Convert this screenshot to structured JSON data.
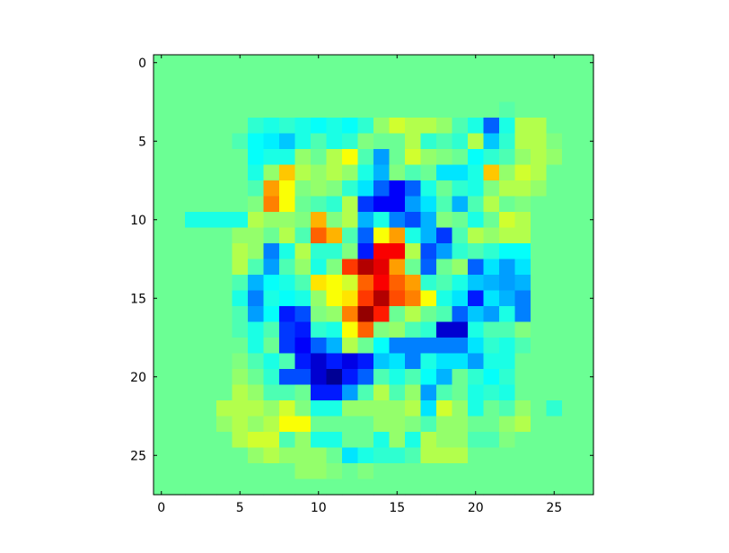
{
  "chart_data": {
    "type": "heatmap",
    "title": "",
    "xlabel": "",
    "ylabel": "",
    "colormap": "jet",
    "vmin": 0.0,
    "vmax": 1.0,
    "xlim": [
      -0.5,
      27.5
    ],
    "ylim": [
      27.5,
      -0.5
    ],
    "grid": false,
    "rows": 28,
    "cols": 28,
    "x_ticks": [
      0,
      5,
      10,
      15,
      20,
      25
    ],
    "y_ticks": [
      0,
      5,
      10,
      15,
      20,
      25
    ],
    "x_tick_labels": [
      "0",
      "5",
      "10",
      "15",
      "20",
      "25"
    ],
    "y_tick_labels": [
      "0",
      "5",
      "10",
      "15",
      "20",
      "25"
    ],
    "background_value": 0.48,
    "values": [
      [
        0.48,
        0.48,
        0.48,
        0.48,
        0.48,
        0.48,
        0.48,
        0.48,
        0.48,
        0.48,
        0.48,
        0.48,
        0.48,
        0.48,
        0.48,
        0.48,
        0.48,
        0.48,
        0.48,
        0.48,
        0.48,
        0.48,
        0.48,
        0.48,
        0.48,
        0.48,
        0.48,
        0.48
      ],
      [
        0.48,
        0.48,
        0.48,
        0.48,
        0.48,
        0.48,
        0.48,
        0.48,
        0.48,
        0.48,
        0.48,
        0.48,
        0.48,
        0.48,
        0.48,
        0.48,
        0.48,
        0.48,
        0.48,
        0.48,
        0.48,
        0.48,
        0.48,
        0.48,
        0.48,
        0.48,
        0.48,
        0.48
      ],
      [
        0.48,
        0.48,
        0.48,
        0.48,
        0.48,
        0.48,
        0.48,
        0.48,
        0.48,
        0.48,
        0.48,
        0.48,
        0.48,
        0.48,
        0.48,
        0.48,
        0.48,
        0.48,
        0.48,
        0.48,
        0.48,
        0.48,
        0.48,
        0.48,
        0.48,
        0.48,
        0.48,
        0.48
      ],
      [
        0.48,
        0.48,
        0.48,
        0.48,
        0.48,
        0.48,
        0.48,
        0.48,
        0.48,
        0.48,
        0.48,
        0.48,
        0.48,
        0.48,
        0.48,
        0.48,
        0.48,
        0.48,
        0.48,
        0.48,
        0.48,
        0.48,
        0.46,
        0.48,
        0.48,
        0.48,
        0.48,
        0.48
      ],
      [
        0.48,
        0.48,
        0.48,
        0.48,
        0.48,
        0.48,
        0.42,
        0.4,
        0.42,
        0.4,
        0.38,
        0.4,
        0.38,
        0.42,
        0.52,
        0.58,
        0.55,
        0.55,
        0.52,
        0.45,
        0.4,
        0.22,
        0.4,
        0.55,
        0.55,
        0.48,
        0.48,
        0.48
      ],
      [
        0.48,
        0.48,
        0.48,
        0.48,
        0.48,
        0.45,
        0.38,
        0.36,
        0.32,
        0.4,
        0.45,
        0.4,
        0.42,
        0.5,
        0.48,
        0.48,
        0.55,
        0.42,
        0.45,
        0.42,
        0.55,
        0.32,
        0.42,
        0.55,
        0.55,
        0.5,
        0.48,
        0.48
      ],
      [
        0.48,
        0.48,
        0.48,
        0.48,
        0.48,
        0.48,
        0.38,
        0.4,
        0.4,
        0.52,
        0.48,
        0.55,
        0.62,
        0.45,
        0.28,
        0.48,
        0.58,
        0.52,
        0.5,
        0.48,
        0.38,
        0.42,
        0.45,
        0.52,
        0.55,
        0.52,
        0.48,
        0.48
      ],
      [
        0.48,
        0.48,
        0.48,
        0.48,
        0.48,
        0.48,
        0.4,
        0.52,
        0.68,
        0.55,
        0.52,
        0.55,
        0.52,
        0.4,
        0.3,
        0.5,
        0.45,
        0.48,
        0.35,
        0.35,
        0.4,
        0.68,
        0.52,
        0.58,
        0.55,
        0.48,
        0.48,
        0.48
      ],
      [
        0.48,
        0.48,
        0.48,
        0.48,
        0.48,
        0.48,
        0.45,
        0.72,
        0.62,
        0.5,
        0.52,
        0.5,
        0.42,
        0.35,
        0.22,
        0.12,
        0.22,
        0.4,
        0.48,
        0.42,
        0.4,
        0.5,
        0.55,
        0.55,
        0.52,
        0.48,
        0.48,
        0.48
      ],
      [
        0.48,
        0.48,
        0.48,
        0.48,
        0.48,
        0.48,
        0.5,
        0.75,
        0.62,
        0.48,
        0.45,
        0.42,
        0.55,
        0.18,
        0.12,
        0.12,
        0.28,
        0.35,
        0.45,
        0.3,
        0.45,
        0.55,
        0.48,
        0.5,
        0.48,
        0.48,
        0.48,
        0.48
      ],
      [
        0.48,
        0.48,
        0.4,
        0.4,
        0.4,
        0.4,
        0.55,
        0.52,
        0.52,
        0.5,
        0.7,
        0.5,
        0.55,
        0.3,
        0.4,
        0.25,
        0.2,
        0.3,
        0.5,
        0.48,
        0.4,
        0.48,
        0.58,
        0.55,
        0.48,
        0.48,
        0.48,
        0.48
      ],
      [
        0.48,
        0.48,
        0.48,
        0.48,
        0.48,
        0.52,
        0.52,
        0.48,
        0.55,
        0.45,
        0.78,
        0.7,
        0.45,
        0.22,
        0.62,
        0.72,
        0.4,
        0.3,
        0.18,
        0.45,
        0.55,
        0.52,
        0.55,
        0.55,
        0.48,
        0.48,
        0.48,
        0.48
      ],
      [
        0.48,
        0.48,
        0.48,
        0.48,
        0.48,
        0.55,
        0.52,
        0.25,
        0.4,
        0.55,
        0.42,
        0.42,
        0.5,
        0.15,
        0.88,
        0.88,
        0.55,
        0.2,
        0.28,
        0.42,
        0.45,
        0.42,
        0.38,
        0.38,
        0.48,
        0.48,
        0.48,
        0.48
      ],
      [
        0.48,
        0.48,
        0.48,
        0.48,
        0.48,
        0.55,
        0.45,
        0.28,
        0.45,
        0.52,
        0.4,
        0.5,
        0.82,
        0.95,
        0.9,
        0.72,
        0.48,
        0.22,
        0.48,
        0.52,
        0.22,
        0.35,
        0.28,
        0.35,
        0.48,
        0.48,
        0.48,
        0.48
      ],
      [
        0.48,
        0.48,
        0.48,
        0.48,
        0.48,
        0.45,
        0.3,
        0.38,
        0.4,
        0.45,
        0.65,
        0.62,
        0.58,
        0.78,
        0.88,
        0.78,
        0.72,
        0.42,
        0.45,
        0.4,
        0.32,
        0.3,
        0.28,
        0.3,
        0.48,
        0.48,
        0.48,
        0.48
      ],
      [
        0.48,
        0.48,
        0.48,
        0.48,
        0.48,
        0.4,
        0.25,
        0.4,
        0.38,
        0.4,
        0.52,
        0.62,
        0.65,
        0.82,
        0.95,
        0.8,
        0.75,
        0.62,
        0.4,
        0.35,
        0.15,
        0.35,
        0.3,
        0.25,
        0.48,
        0.48,
        0.48,
        0.48
      ],
      [
        0.48,
        0.48,
        0.48,
        0.48,
        0.48,
        0.45,
        0.28,
        0.38,
        0.15,
        0.2,
        0.5,
        0.52,
        0.75,
        0.98,
        0.85,
        0.48,
        0.55,
        0.48,
        0.45,
        0.22,
        0.32,
        0.28,
        0.4,
        0.25,
        0.48,
        0.48,
        0.48,
        0.48
      ],
      [
        0.48,
        0.48,
        0.48,
        0.48,
        0.48,
        0.45,
        0.4,
        0.45,
        0.18,
        0.15,
        0.42,
        0.4,
        0.62,
        0.78,
        0.5,
        0.52,
        0.45,
        0.42,
        0.08,
        0.08,
        0.4,
        0.45,
        0.45,
        0.5,
        0.48,
        0.48,
        0.48,
        0.48
      ],
      [
        0.48,
        0.48,
        0.48,
        0.48,
        0.48,
        0.48,
        0.4,
        0.48,
        0.18,
        0.12,
        0.22,
        0.3,
        0.55,
        0.48,
        0.38,
        0.25,
        0.25,
        0.25,
        0.25,
        0.25,
        0.35,
        0.42,
        0.4,
        0.45,
        0.48,
        0.48,
        0.48,
        0.48
      ],
      [
        0.48,
        0.48,
        0.48,
        0.48,
        0.48,
        0.5,
        0.45,
        0.4,
        0.45,
        0.15,
        0.08,
        0.15,
        0.1,
        0.15,
        0.32,
        0.35,
        0.25,
        0.4,
        0.35,
        0.35,
        0.28,
        0.4,
        0.4,
        0.48,
        0.48,
        0.48,
        0.48,
        0.48
      ],
      [
        0.48,
        0.48,
        0.48,
        0.48,
        0.48,
        0.52,
        0.48,
        0.42,
        0.2,
        0.2,
        0.08,
        0.02,
        0.15,
        0.22,
        0.45,
        0.4,
        0.45,
        0.38,
        0.3,
        0.48,
        0.42,
        0.38,
        0.42,
        0.48,
        0.48,
        0.48,
        0.48,
        0.48
      ],
      [
        0.48,
        0.48,
        0.48,
        0.48,
        0.48,
        0.55,
        0.52,
        0.45,
        0.45,
        0.48,
        0.15,
        0.15,
        0.28,
        0.45,
        0.55,
        0.45,
        0.52,
        0.28,
        0.45,
        0.48,
        0.4,
        0.42,
        0.4,
        0.48,
        0.48,
        0.48,
        0.48,
        0.48
      ],
      [
        0.48,
        0.48,
        0.48,
        0.48,
        0.55,
        0.55,
        0.55,
        0.52,
        0.58,
        0.5,
        0.4,
        0.4,
        0.52,
        0.52,
        0.52,
        0.52,
        0.55,
        0.35,
        0.58,
        0.52,
        0.4,
        0.48,
        0.45,
        0.52,
        0.48,
        0.42,
        0.48,
        0.48
      ],
      [
        0.48,
        0.48,
        0.48,
        0.48,
        0.52,
        0.55,
        0.52,
        0.55,
        0.62,
        0.62,
        0.48,
        0.48,
        0.48,
        0.48,
        0.52,
        0.52,
        0.5,
        0.45,
        0.52,
        0.52,
        0.48,
        0.48,
        0.52,
        0.55,
        0.48,
        0.48,
        0.48,
        0.48
      ],
      [
        0.48,
        0.48,
        0.48,
        0.48,
        0.48,
        0.55,
        0.58,
        0.58,
        0.45,
        0.52,
        0.4,
        0.4,
        0.48,
        0.48,
        0.4,
        0.52,
        0.4,
        0.55,
        0.52,
        0.52,
        0.45,
        0.45,
        0.5,
        0.48,
        0.48,
        0.48,
        0.48,
        0.48
      ],
      [
        0.48,
        0.48,
        0.48,
        0.48,
        0.48,
        0.48,
        0.52,
        0.55,
        0.52,
        0.52,
        0.52,
        0.48,
        0.35,
        0.4,
        0.42,
        0.42,
        0.45,
        0.55,
        0.55,
        0.55,
        0.48,
        0.48,
        0.48,
        0.48,
        0.48,
        0.48,
        0.48,
        0.48
      ],
      [
        0.48,
        0.48,
        0.48,
        0.48,
        0.48,
        0.48,
        0.48,
        0.48,
        0.48,
        0.52,
        0.52,
        0.5,
        0.48,
        0.5,
        0.48,
        0.48,
        0.48,
        0.48,
        0.48,
        0.48,
        0.48,
        0.48,
        0.48,
        0.48,
        0.48,
        0.48,
        0.48,
        0.48
      ],
      [
        0.48,
        0.48,
        0.48,
        0.48,
        0.48,
        0.48,
        0.48,
        0.48,
        0.48,
        0.48,
        0.48,
        0.48,
        0.48,
        0.48,
        0.48,
        0.48,
        0.48,
        0.48,
        0.48,
        0.48,
        0.48,
        0.48,
        0.48,
        0.48,
        0.48,
        0.48,
        0.48,
        0.48
      ]
    ]
  }
}
